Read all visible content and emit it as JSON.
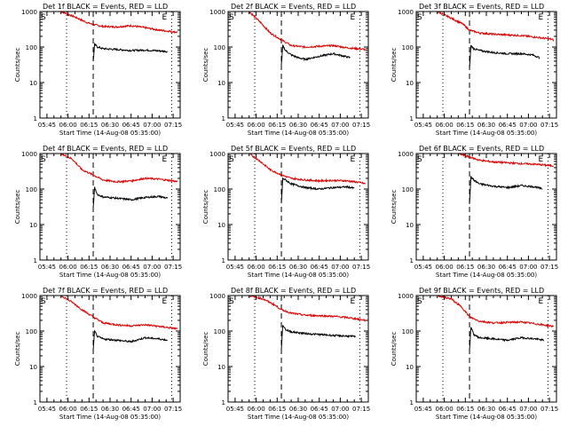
{
  "figure": {
    "x_ticks": [
      "05:45",
      "06:00",
      "06:15",
      "06:30",
      "06:45",
      "07:00",
      "07:15"
    ],
    "y_ticks": [
      "1",
      "10",
      "100",
      "1000"
    ],
    "xlabel": "Start Time (14-Aug-08 05:35:00)",
    "ylabel": "Counts/sec",
    "marker_s": "S",
    "marker_e": "E",
    "series_colors": {
      "events": "#000000",
      "lld": "#dd0000"
    }
  },
  "chart_data": [
    {
      "type": "line",
      "title": "Det 1f BLACK = Events, RED = LLD",
      "xlim_min": [
        5,
        105
      ],
      "ylim": [
        1,
        1000
      ],
      "yscale": "log",
      "vlines_dotted_min": [
        24,
        99
      ],
      "vline_dashed_min": [
        43
      ],
      "series": [
        {
          "color": "red",
          "x": [
            5,
            20,
            30,
            38,
            43,
            50,
            60,
            70,
            80,
            90,
            100,
            103
          ],
          "y": [
            1000,
            1000,
            700,
            500,
            430,
            380,
            370,
            400,
            350,
            300,
            270,
            260
          ]
        },
        {
          "color": "black",
          "x": [
            43,
            44,
            46,
            50,
            60,
            70,
            80,
            90,
            96
          ],
          "y": [
            40,
            120,
            100,
            90,
            85,
            80,
            82,
            78,
            75
          ]
        }
      ]
    },
    {
      "type": "line",
      "title": "Det 2f BLACK = Events, RED = LLD",
      "xlim_min": [
        5,
        105
      ],
      "ylim": [
        1,
        1000
      ],
      "yscale": "log",
      "vlines_dotted_min": [
        24,
        99
      ],
      "vline_dashed_min": [
        43
      ],
      "series": [
        {
          "color": "red",
          "x": [
            5,
            20,
            28,
            35,
            43,
            50,
            60,
            70,
            80,
            90,
            100,
            103
          ],
          "y": [
            1000,
            1000,
            500,
            250,
            160,
            110,
            100,
            105,
            110,
            95,
            88,
            85
          ]
        },
        {
          "color": "black",
          "x": [
            43,
            44,
            46,
            50,
            55,
            60,
            70,
            80,
            88,
            92
          ],
          "y": [
            30,
            110,
            80,
            60,
            50,
            45,
            55,
            65,
            55,
            50
          ]
        }
      ]
    },
    {
      "type": "line",
      "title": "Det 3f BLACK = Events, RED = LLD",
      "xlim_min": [
        5,
        105
      ],
      "ylim": [
        1,
        1000
      ],
      "yscale": "log",
      "vlines_dotted_min": [
        24,
        99
      ],
      "vline_dashed_min": [
        43
      ],
      "series": [
        {
          "color": "red",
          "x": [
            5,
            20,
            30,
            38,
            43,
            50,
            60,
            70,
            80,
            90,
            100,
            103
          ],
          "y": [
            1000,
            1000,
            650,
            450,
            300,
            250,
            230,
            220,
            210,
            190,
            170,
            160
          ]
        },
        {
          "color": "black",
          "x": [
            43,
            44,
            46,
            50,
            60,
            70,
            80,
            88,
            93
          ],
          "y": [
            25,
            110,
            90,
            80,
            70,
            65,
            65,
            60,
            50
          ]
        }
      ]
    },
    {
      "type": "line",
      "title": "Det 4f BLACK = Events, RED = LLD",
      "xlim_min": [
        5,
        105
      ],
      "ylim": [
        1,
        1000
      ],
      "yscale": "log",
      "vlines_dotted_min": [
        24,
        99
      ],
      "vline_dashed_min": [
        43
      ],
      "series": [
        {
          "color": "red",
          "x": [
            5,
            20,
            28,
            35,
            43,
            50,
            60,
            70,
            80,
            90,
            100,
            103
          ],
          "y": [
            1000,
            1000,
            700,
            350,
            250,
            180,
            160,
            170,
            200,
            190,
            170,
            160
          ]
        },
        {
          "color": "black",
          "x": [
            43,
            44,
            46,
            50,
            60,
            70,
            80,
            90,
            96
          ],
          "y": [
            30,
            110,
            70,
            60,
            55,
            50,
            58,
            62,
            55
          ]
        }
      ]
    },
    {
      "type": "line",
      "title": "Det 5f BLACK = Events, RED = LLD",
      "xlim_min": [
        5,
        105
      ],
      "ylim": [
        1,
        1000
      ],
      "yscale": "log",
      "vlines_dotted_min": [
        24,
        99
      ],
      "vline_dashed_min": [
        43
      ],
      "series": [
        {
          "color": "red",
          "x": [
            5,
            20,
            28,
            35,
            43,
            50,
            60,
            70,
            80,
            90,
            100,
            103
          ],
          "y": [
            1000,
            1000,
            600,
            350,
            250,
            200,
            180,
            170,
            175,
            170,
            150,
            140
          ]
        },
        {
          "color": "black",
          "x": [
            43,
            44,
            46,
            50,
            60,
            70,
            80,
            90,
            95
          ],
          "y": [
            40,
            200,
            180,
            140,
            110,
            100,
            110,
            115,
            105
          ]
        }
      ]
    },
    {
      "type": "line",
      "title": "Det 6f BLACK = Events, RED = LLD",
      "xlim_min": [
        5,
        105
      ],
      "ylim": [
        1,
        1000
      ],
      "yscale": "log",
      "vlines_dotted_min": [
        24,
        99
      ],
      "vline_dashed_min": [
        43
      ],
      "series": [
        {
          "color": "red",
          "x": [
            5,
            20,
            35,
            43,
            50,
            60,
            70,
            80,
            90,
            100,
            103
          ],
          "y": [
            1000,
            1000,
            1000,
            800,
            650,
            580,
            550,
            520,
            500,
            460,
            450
          ]
        },
        {
          "color": "black",
          "x": [
            43,
            44,
            46,
            50,
            60,
            70,
            80,
            90,
            95
          ],
          "y": [
            40,
            220,
            180,
            140,
            120,
            110,
            125,
            115,
            100
          ]
        }
      ]
    },
    {
      "type": "line",
      "title": "Det 7f BLACK = Events, RED = LLD",
      "xlim_min": [
        5,
        105
      ],
      "ylim": [
        1,
        1000
      ],
      "yscale": "log",
      "vlines_dotted_min": [
        24,
        99
      ],
      "vline_dashed_min": [
        43
      ],
      "series": [
        {
          "color": "red",
          "x": [
            5,
            20,
            28,
            35,
            43,
            50,
            60,
            70,
            80,
            90,
            100,
            103
          ],
          "y": [
            1000,
            1000,
            650,
            400,
            250,
            170,
            150,
            140,
            150,
            135,
            120,
            115
          ]
        },
        {
          "color": "black",
          "x": [
            43,
            44,
            46,
            50,
            60,
            70,
            80,
            90,
            96
          ],
          "y": [
            30,
            100,
            70,
            60,
            55,
            50,
            65,
            60,
            55
          ]
        }
      ]
    },
    {
      "type": "line",
      "title": "Det 8f BLACK = Events, RED = LLD",
      "xlim_min": [
        5,
        105
      ],
      "ylim": [
        1,
        1000
      ],
      "yscale": "log",
      "vlines_dotted_min": [
        24,
        99
      ],
      "vline_dashed_min": [
        43
      ],
      "series": [
        {
          "color": "red",
          "x": [
            5,
            20,
            30,
            38,
            43,
            50,
            60,
            70,
            80,
            90,
            100,
            103
          ],
          "y": [
            1000,
            1000,
            800,
            550,
            400,
            320,
            280,
            270,
            260,
            240,
            210,
            200
          ]
        },
        {
          "color": "black",
          "x": [
            43,
            44,
            46,
            50,
            60,
            70,
            80,
            90,
            96
          ],
          "y": [
            30,
            150,
            110,
            95,
            85,
            80,
            75,
            72,
            70
          ]
        }
      ]
    },
    {
      "type": "line",
      "title": "Det 9f BLACK = Events, RED = LLD",
      "xlim_min": [
        5,
        105
      ],
      "ylim": [
        1,
        1000
      ],
      "yscale": "log",
      "vlines_dotted_min": [
        24,
        99
      ],
      "vline_dashed_min": [
        43
      ],
      "series": [
        {
          "color": "red",
          "x": [
            5,
            20,
            30,
            38,
            43,
            50,
            60,
            70,
            80,
            90,
            100,
            103
          ],
          "y": [
            1000,
            1000,
            800,
            450,
            250,
            190,
            170,
            175,
            180,
            160,
            140,
            135
          ]
        },
        {
          "color": "black",
          "x": [
            43,
            44,
            46,
            50,
            60,
            70,
            80,
            90,
            96
          ],
          "y": [
            30,
            130,
            80,
            65,
            60,
            55,
            65,
            60,
            55
          ]
        }
      ]
    }
  ]
}
